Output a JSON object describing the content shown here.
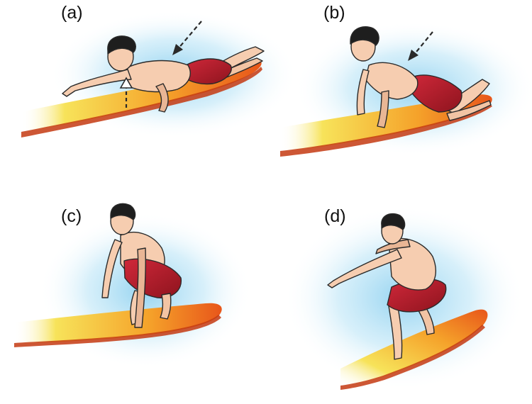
{
  "panels": [
    {
      "label": "(a)",
      "pose": "paddling-prone-on-board"
    },
    {
      "label": "(b)",
      "pose": "push-up-on-board"
    },
    {
      "label": "(c)",
      "pose": "crouching-pop-up"
    },
    {
      "label": "(d)",
      "pose": "standing-riding-stance"
    }
  ],
  "colors": {
    "board_tip": "#f7e35a",
    "board_mid": "#f5a22a",
    "board_tail": "#e8561a",
    "board_rail": "#c43a12",
    "shorts": "#b81e2a",
    "shorts_dark": "#7d1018",
    "skin": "#f6cdb0",
    "skin_shade": "#e2a786",
    "hair": "#1e1e1e",
    "splash": "#bfe6f7",
    "arrow": "#ffffff",
    "outline": "#2a2a2a"
  },
  "icons": [
    "dashed-arrow-down-left-icon",
    "dashed-arrow-up-icon"
  ]
}
